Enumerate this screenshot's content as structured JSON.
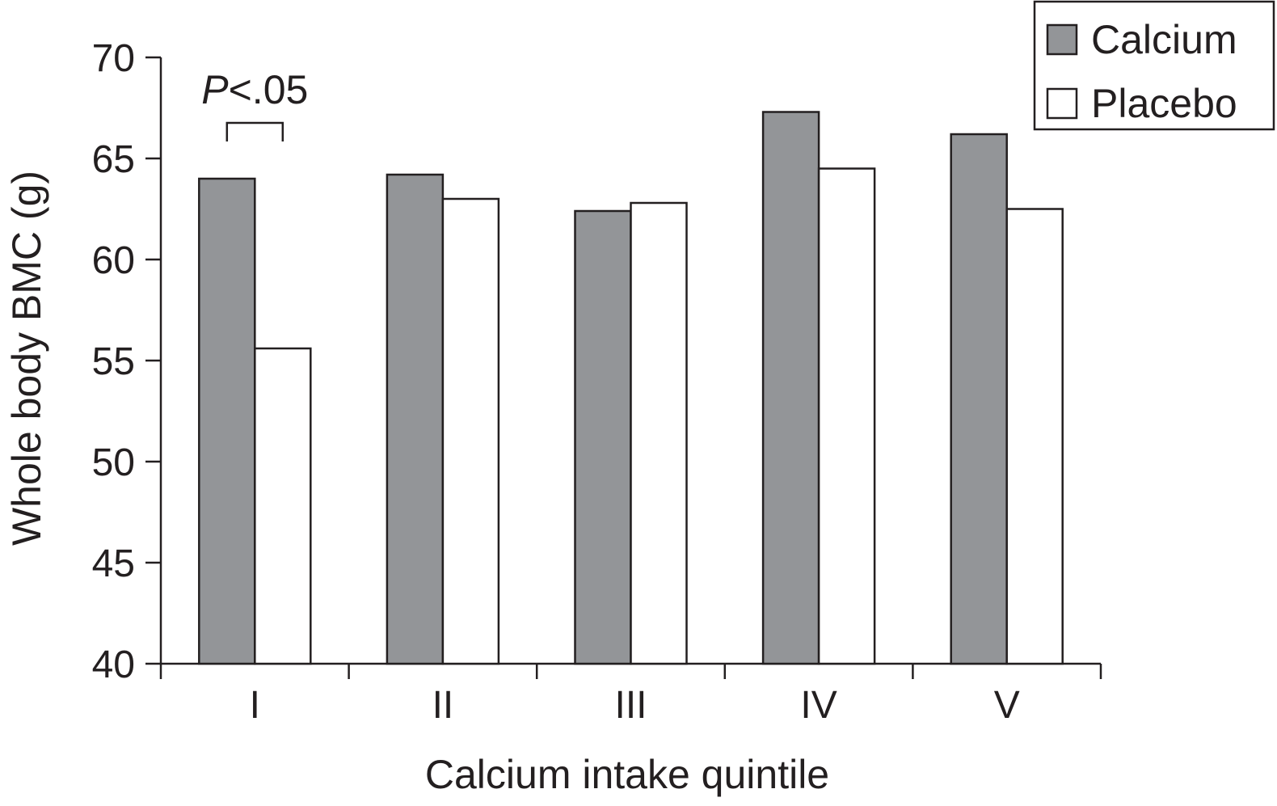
{
  "chart_data": {
    "type": "bar",
    "categories": [
      "I",
      "II",
      "III",
      "IV",
      "V"
    ],
    "series": [
      {
        "name": "Calcium",
        "values": [
          64.0,
          64.2,
          62.4,
          67.3,
          66.2
        ],
        "color": "#939598"
      },
      {
        "name": "Placebo",
        "values": [
          55.6,
          63.0,
          62.8,
          64.5,
          62.5
        ],
        "color": "#ffffff"
      }
    ],
    "ylabel": "Whole body BMC (g)",
    "xlabel": "Calcium intake quintile",
    "ylim": [
      40,
      70
    ],
    "yticks": [
      40,
      45,
      50,
      55,
      60,
      65,
      70
    ],
    "grid": false,
    "legend": "top-right",
    "annotation": {
      "italic": "P",
      "text": "<.05",
      "category": "I"
    }
  }
}
